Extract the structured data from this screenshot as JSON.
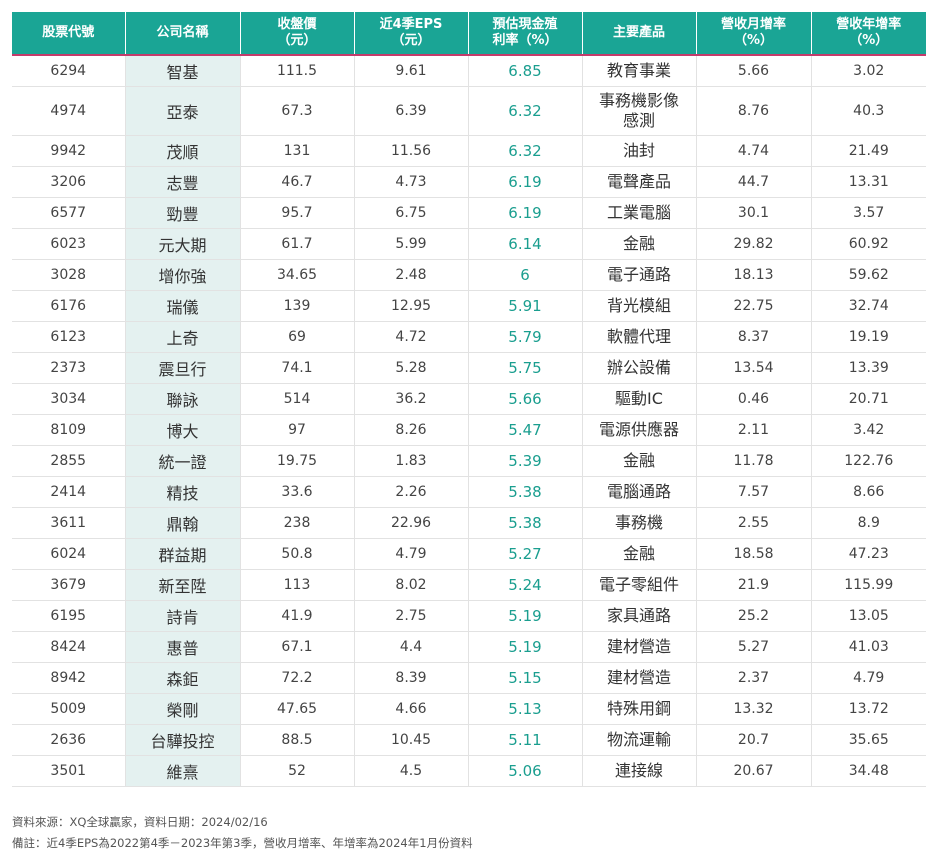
{
  "table": {
    "headers": [
      [
        "股票代號"
      ],
      [
        "公司名稱"
      ],
      [
        "收盤價",
        "（元）"
      ],
      [
        "近4季EPS",
        "（元）"
      ],
      [
        "預估現金殖",
        "利率（%）"
      ],
      [
        "主要產品"
      ],
      [
        "營收月增率",
        "（%）"
      ],
      [
        "營收年增率",
        "（%）"
      ]
    ],
    "rows": [
      [
        "6294",
        "智基",
        "111.5",
        "9.61",
        "6.85",
        "教育事業",
        "5.66",
        "3.02"
      ],
      [
        "4974",
        "亞泰",
        "67.3",
        "6.39",
        "6.32",
        "事務機影像感測",
        "8.76",
        "40.3"
      ],
      [
        "9942",
        "茂順",
        "131",
        "11.56",
        "6.32",
        "油封",
        "4.74",
        "21.49"
      ],
      [
        "3206",
        "志豐",
        "46.7",
        "4.73",
        "6.19",
        "電聲產品",
        "44.7",
        "13.31"
      ],
      [
        "6577",
        "勁豐",
        "95.7",
        "6.75",
        "6.19",
        "工業電腦",
        "30.1",
        "3.57"
      ],
      [
        "6023",
        "元大期",
        "61.7",
        "5.99",
        "6.14",
        "金融",
        "29.82",
        "60.92"
      ],
      [
        "3028",
        "增你強",
        "34.65",
        "2.48",
        "6",
        "電子通路",
        "18.13",
        "59.62"
      ],
      [
        "6176",
        "瑞儀",
        "139",
        "12.95",
        "5.91",
        "背光模組",
        "22.75",
        "32.74"
      ],
      [
        "6123",
        "上奇",
        "69",
        "4.72",
        "5.79",
        "軟體代理",
        "8.37",
        "19.19"
      ],
      [
        "2373",
        "震旦行",
        "74.1",
        "5.28",
        "5.75",
        "辦公設備",
        "13.54",
        "13.39"
      ],
      [
        "3034",
        "聯詠",
        "514",
        "36.2",
        "5.66",
        "驅動IC",
        "0.46",
        "20.71"
      ],
      [
        "8109",
        "博大",
        "97",
        "8.26",
        "5.47",
        "電源供應器",
        "2.11",
        "3.42"
      ],
      [
        "2855",
        "統一證",
        "19.75",
        "1.83",
        "5.39",
        "金融",
        "11.78",
        "122.76"
      ],
      [
        "2414",
        "精技",
        "33.6",
        "2.26",
        "5.38",
        "電腦通路",
        "7.57",
        "8.66"
      ],
      [
        "3611",
        "鼎翰",
        "238",
        "22.96",
        "5.38",
        "事務機",
        "2.55",
        "8.9"
      ],
      [
        "6024",
        "群益期",
        "50.8",
        "4.79",
        "5.27",
        "金融",
        "18.58",
        "47.23"
      ],
      [
        "3679",
        "新至陞",
        "113",
        "8.02",
        "5.24",
        "電子零組件",
        "21.9",
        "115.99"
      ],
      [
        "6195",
        "詩肯",
        "41.9",
        "2.75",
        "5.19",
        "家具通路",
        "25.2",
        "13.05"
      ],
      [
        "8424",
        "惠普",
        "67.1",
        "4.4",
        "5.19",
        "建材營造",
        "5.27",
        "41.03"
      ],
      [
        "8942",
        "森鉅",
        "72.2",
        "8.39",
        "5.15",
        "建材營造",
        "2.37",
        "4.79"
      ],
      [
        "5009",
        "榮剛",
        "47.65",
        "4.66",
        "5.13",
        "特殊用鋼",
        "13.32",
        "13.72"
      ],
      [
        "2636",
        "台驊投控",
        "88.5",
        "10.45",
        "5.11",
        "物流運輸",
        "20.7",
        "35.65"
      ],
      [
        "3501",
        "維熹",
        "52",
        "4.5",
        "5.06",
        "連接線",
        "20.67",
        "34.48"
      ]
    ]
  },
  "footer": {
    "source": "資料來源：XQ全球贏家，資料日期：2024/02/16",
    "note": "備註：近4季EPS為2022第4季－2023年第3季，營收月增率、年增率為2024年1月份資料"
  },
  "colors": {
    "header_bg": "#1aa595",
    "header_rule": "#c43b6b",
    "name_col_bg": "#e4f1f0",
    "yield_text": "#1a9e8f"
  }
}
